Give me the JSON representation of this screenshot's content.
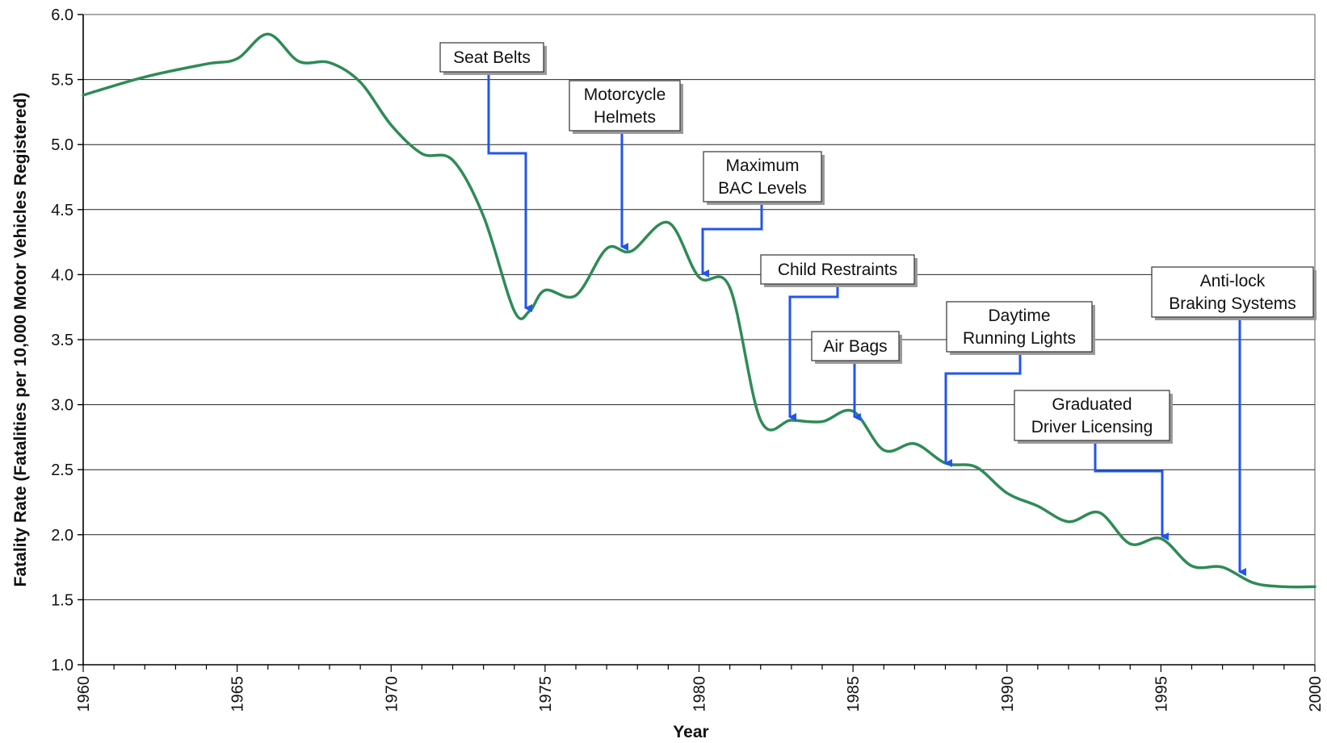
{
  "chart_data": {
    "type": "line",
    "title": "",
    "xlabel": "Year",
    "ylabel": "Fatality Rate (Fatalities per 10,000 Motor Vehicles Registered)",
    "xlim": [
      1960,
      2000
    ],
    "ylim": [
      1.0,
      6.0
    ],
    "grid": "horizontal",
    "x_ticks": [
      "1960",
      "1965",
      "1970",
      "1975",
      "1980",
      "1985",
      "1990",
      "1995",
      "2000"
    ],
    "y_ticks": [
      "1.0",
      "1.5",
      "2.0",
      "2.5",
      "3.0",
      "3.5",
      "4.0",
      "4.5",
      "5.0",
      "5.5",
      "6.0"
    ],
    "line_color": "#2e8b57",
    "arrow_color": "#2255ee",
    "series": [
      {
        "x": [
          1960,
          1962,
          1964,
          1965,
          1966,
          1967,
          1968,
          1969,
          1970,
          1971,
          1972,
          1973,
          1974,
          1974.5,
          1975,
          1976,
          1977,
          1977.8,
          1979,
          1980,
          1981,
          1982,
          1983,
          1984,
          1985,
          1986,
          1987,
          1988,
          1989,
          1990,
          1991,
          1992,
          1993,
          1994,
          1995,
          1996,
          1997,
          1998,
          1999,
          2000
        ],
        "y": [
          5.38,
          5.52,
          5.62,
          5.66,
          5.85,
          5.64,
          5.63,
          5.48,
          5.15,
          4.93,
          4.88,
          4.45,
          3.72,
          3.72,
          3.88,
          3.84,
          4.2,
          4.18,
          4.4,
          3.98,
          3.9,
          2.88,
          2.88,
          2.87,
          2.95,
          2.65,
          2.7,
          2.55,
          2.52,
          2.32,
          2.22,
          2.1,
          2.17,
          1.93,
          1.97,
          1.76,
          1.75,
          1.63,
          1.6,
          1.6
        ]
      }
    ],
    "annotations": [
      {
        "name": "seat-belts",
        "lines": [
          "Seat Belts"
        ],
        "year": 1974.5
      },
      {
        "name": "motorcycle-helmets",
        "lines": [
          "Motorcycle",
          "Helmets"
        ],
        "year": 1977.5
      },
      {
        "name": "maximum-bac-levels",
        "lines": [
          "Maximum",
          "BAC Levels"
        ],
        "year": 1980
      },
      {
        "name": "child-restraints",
        "lines": [
          "Child Restraints"
        ],
        "year": 1983
      },
      {
        "name": "air-bags",
        "lines": [
          "Air Bags"
        ],
        "year": 1985
      },
      {
        "name": "daytime-running-lights",
        "lines": [
          "Daytime",
          "Running Lights"
        ],
        "year": 1988
      },
      {
        "name": "graduated-driver-licensing",
        "lines": [
          "Graduated",
          "Driver Licensing"
        ],
        "year": 1995
      },
      {
        "name": "anti-lock-braking-systems",
        "lines": [
          "Anti-lock",
          "Braking Systems"
        ],
        "year": 1997.5
      }
    ]
  }
}
